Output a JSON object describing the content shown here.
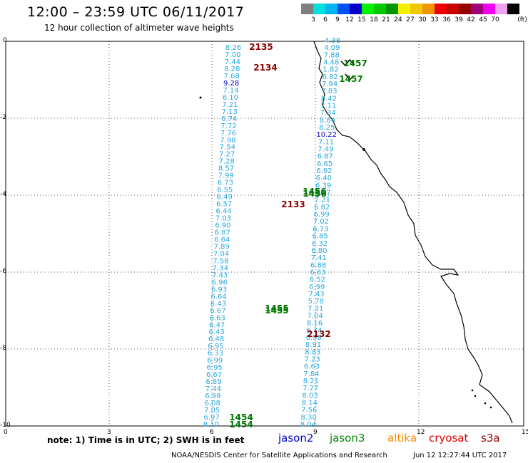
{
  "header": {
    "title": "12:00 – 23:59 UTC 06/11/2017",
    "subtitle": "12 hour collection of altimeter wave heights"
  },
  "legend": {
    "unit": "(ft)",
    "swatches": [
      {
        "color": "#7f7f7f",
        "label": ""
      },
      {
        "color": "#00e0e0",
        "label": "3"
      },
      {
        "color": "#00b4f0",
        "label": "6"
      },
      {
        "color": "#0050f0",
        "label": "9"
      },
      {
        "color": "#0000c8",
        "label": "12"
      },
      {
        "color": "#00f000",
        "label": "15"
      },
      {
        "color": "#00c800",
        "label": "18"
      },
      {
        "color": "#009600",
        "label": "21"
      },
      {
        "color": "#f0f000",
        "label": "24"
      },
      {
        "color": "#f0c800",
        "label": "27"
      },
      {
        "color": "#f09600",
        "label": "30"
      },
      {
        "color": "#f00000",
        "label": "33"
      },
      {
        "color": "#c80000",
        "label": "36"
      },
      {
        "color": "#960000",
        "label": "39"
      },
      {
        "color": "#a0007a",
        "label": "42"
      },
      {
        "color": "#f000f0",
        "label": "45"
      },
      {
        "color": "#f0a0f0",
        "label": "70"
      },
      {
        "color": "#000000",
        "label": ""
      }
    ]
  },
  "axes": {
    "x_ticks": [
      "0",
      "3",
      "6",
      "9",
      "12",
      "15"
    ],
    "y_ticks": [
      "0",
      "-2",
      "-4",
      "-6",
      "-8",
      "-10"
    ]
  },
  "tracks": {
    "a": [
      "8.26",
      "7.00",
      "7.44",
      "8.28",
      "7.68",
      "9.28",
      "7.14",
      "6.10",
      "7.21",
      "7.13",
      "6.74",
      "7.72",
      "7.76",
      "7.98",
      "7.54",
      "7.27",
      "7.28",
      "8.57",
      "7.99",
      "6.73",
      "6.55",
      "6.49",
      "6.57",
      "6.44",
      "7.03",
      "6.90",
      "6.87",
      "6.64",
      "7.89",
      "7.04",
      "7.58",
      "7.34",
      "7.43",
      "6.96",
      "6.93",
      "6.64",
      "6.43",
      "6.67",
      "6.63",
      "6.47",
      "6.43",
      "6.48",
      "6.95",
      "6.33",
      "6.99",
      "6.95",
      "6.67",
      "6.89",
      "7.44",
      "6.99",
      "6.08",
      "7.05",
      "6.97",
      "8.10"
    ],
    "b": [
      "4.38",
      "4.09",
      "7.88",
      "4.48",
      "1.82",
      "6.82",
      "7.94",
      "7.83",
      "8.42",
      "7.11",
      "7.34",
      "8.84",
      "8.25",
      "10.22",
      "7.11",
      "7.49",
      "6.87",
      "6.65",
      "6.92",
      "6.40",
      "6.39",
      "7.57",
      "7.21",
      "6.82",
      "6.99",
      "7.02",
      "6.73",
      "6.85",
      "6.32",
      "6.80",
      "7.41",
      "6.88",
      "6.83",
      "6.52",
      "6.99",
      "7.43",
      "5.78",
      "7.31",
      "7.04",
      "8.16",
      "6.74",
      "6.98",
      "8.91",
      "8.83",
      "7.23",
      "6.63",
      "7.84",
      "8.21",
      "7.27",
      "8.03",
      "8.14",
      "7.56",
      "8.30",
      "8.04"
    ]
  },
  "pass_labels": [
    {
      "text": "2135",
      "satellite": "cryosat"
    },
    {
      "text": "2134",
      "satellite": "cryosat"
    },
    {
      "text": "1457",
      "satellite": "jason3"
    },
    {
      "text": "1457",
      "satellite": "jason3"
    },
    {
      "text": "1456",
      "satellite": "jason3"
    },
    {
      "text": "1456",
      "satellite": "jason3"
    },
    {
      "text": "2133",
      "satellite": "cryosat"
    },
    {
      "text": "1455",
      "satellite": "jason3"
    },
    {
      "text": "1455",
      "satellite": "jason3"
    },
    {
      "text": "2132",
      "satellite": "cryosat"
    },
    {
      "text": "1454",
      "satellite": "jason3"
    },
    {
      "text": "1454",
      "satellite": "jason3"
    }
  ],
  "footer": {
    "note": "note:  1) Time is in UTC;  2) SWH is in feet",
    "satellites": [
      {
        "name": "jason2",
        "color": "#0000cc"
      },
      {
        "name": "jason3",
        "color": "#008800"
      },
      {
        "name": "altika",
        "color": "#ff8800"
      },
      {
        "name": "cryosat",
        "color": "#dd0000"
      },
      {
        "name": "s3a",
        "color": "#990000"
      }
    ],
    "credit": "NOAA/NESDIS Center for Satellite Applications and Research",
    "timestamp": "Jun 12 12:27:44 UTC 2017"
  },
  "colors": {
    "track_a": "#29a8e0",
    "track_b": "#29a8e0",
    "high_value": "#0000cc",
    "cryosat_label": "#8b0000",
    "jason3_label": "#007700",
    "coast": "#000000"
  }
}
